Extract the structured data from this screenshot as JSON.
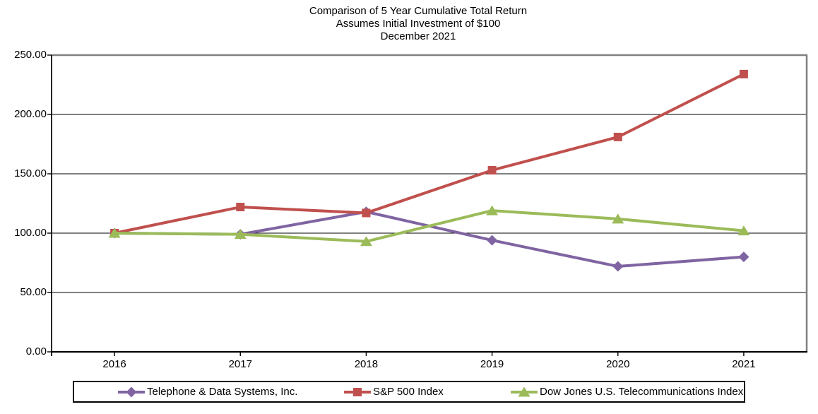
{
  "chart_data": {
    "type": "line",
    "title_lines": [
      "Comparison of 5 Year Cumulative Total Return",
      "Assumes Initial Investment of $100",
      "December 2021"
    ],
    "categories": [
      "2016",
      "2017",
      "2018",
      "2019",
      "2020",
      "2021"
    ],
    "series": [
      {
        "name": "Telephone & Data Systems, Inc.",
        "color": "#8064A2",
        "marker": "diamond",
        "values": [
          100,
          99,
          118,
          94,
          72,
          80
        ]
      },
      {
        "name": "S&P 500 Index",
        "color": "#C0504D",
        "marker": "square",
        "values": [
          100,
          122,
          117,
          153,
          181,
          234
        ]
      },
      {
        "name": "Dow Jones U.S. Telecommunications Index",
        "color": "#9BBB59",
        "marker": "triangle",
        "values": [
          100,
          99,
          93,
          119,
          112,
          102
        ]
      }
    ],
    "ylim": [
      0,
      250
    ],
    "ytick_step": 50,
    "ytick_labels": [
      "0.00",
      "50.00",
      "100.00",
      "150.00",
      "200.00",
      "250.00"
    ],
    "grid": "horizontal",
    "legend_position": "bottom",
    "colors": {
      "axis": "#000000",
      "gridline": "#000000",
      "plot_border": "#808080",
      "background": "#FFFFFF"
    }
  }
}
